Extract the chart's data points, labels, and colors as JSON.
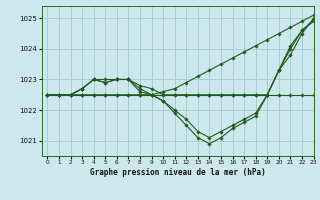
{
  "title": "Graphe pression niveau de la mer (hPa)",
  "background_color": "#cde8ec",
  "grid_color": "#a8cdd4",
  "line_color": "#1e5c1e",
  "xlim": [
    -0.5,
    23
  ],
  "ylim": [
    1020.5,
    1025.4
  ],
  "yticks": [
    1021,
    1022,
    1023,
    1024,
    1025
  ],
  "xticks": [
    0,
    1,
    2,
    3,
    4,
    5,
    6,
    7,
    8,
    9,
    10,
    11,
    12,
    13,
    14,
    15,
    16,
    17,
    18,
    19,
    20,
    21,
    22,
    23
  ],
  "series": [
    {
      "x": [
        0,
        1,
        2,
        3,
        4,
        5,
        6,
        7,
        8,
        9,
        10,
        11,
        12,
        13,
        14,
        15,
        16,
        17,
        18,
        19,
        20,
        21,
        22,
        23
      ],
      "y": [
        1022.5,
        1022.5,
        1022.5,
        1022.5,
        1022.5,
        1022.5,
        1022.5,
        1022.5,
        1022.5,
        1022.5,
        1022.5,
        1022.5,
        1022.5,
        1022.5,
        1022.5,
        1022.5,
        1022.5,
        1022.5,
        1022.5,
        1022.5,
        1022.5,
        1022.5,
        1022.5,
        1022.5
      ]
    },
    {
      "x": [
        0,
        1,
        2,
        3,
        4,
        5,
        6,
        7,
        8,
        9,
        10,
        11,
        12,
        13,
        14,
        15,
        16,
        17,
        18,
        19,
        20,
        21,
        22,
        23
      ],
      "y": [
        1022.5,
        1022.5,
        1022.5,
        1022.5,
        1022.5,
        1022.5,
        1022.5,
        1022.5,
        1022.5,
        1022.5,
        1022.6,
        1022.7,
        1022.9,
        1023.1,
        1023.3,
        1023.5,
        1023.7,
        1023.9,
        1024.1,
        1024.3,
        1024.5,
        1024.7,
        1024.9,
        1025.1
      ]
    },
    {
      "x": [
        0,
        1,
        2,
        3,
        4,
        5,
        6,
        7,
        8,
        9,
        10,
        11,
        12,
        13,
        14,
        15,
        16,
        17,
        18,
        19,
        20,
        21,
        22,
        23
      ],
      "y": [
        1022.5,
        1022.5,
        1022.5,
        1022.7,
        1023.0,
        1022.9,
        1023.0,
        1023.0,
        1022.6,
        1022.5,
        1022.3,
        1021.9,
        1021.5,
        1021.1,
        1020.9,
        1021.1,
        1021.4,
        1021.6,
        1021.8,
        1022.5,
        1023.3,
        1024.1,
        1024.6,
        1024.9
      ]
    },
    {
      "x": [
        0,
        1,
        2,
        3,
        4,
        5,
        6,
        7,
        8,
        9,
        10,
        11,
        12,
        13,
        14,
        15,
        16,
        17,
        18,
        19,
        20,
        21,
        22,
        23
      ],
      "y": [
        1022.5,
        1022.5,
        1022.5,
        1022.7,
        1023.0,
        1022.9,
        1023.0,
        1023.0,
        1022.7,
        1022.5,
        1022.3,
        1022.0,
        1021.7,
        1021.3,
        1021.1,
        1021.3,
        1021.5,
        1021.7,
        1021.9,
        1022.5,
        1023.3,
        1024.0,
        1024.6,
        1024.95
      ]
    },
    {
      "x": [
        0,
        1,
        2,
        3,
        4,
        5,
        6,
        7,
        8,
        9,
        10,
        11,
        12,
        13,
        14,
        15,
        16,
        17,
        18,
        19,
        20,
        21,
        22,
        23
      ],
      "y": [
        1022.5,
        1022.5,
        1022.5,
        1022.7,
        1023.0,
        1023.0,
        1023.0,
        1023.0,
        1022.8,
        1022.7,
        1022.5,
        1022.5,
        1022.5,
        1022.5,
        1022.5,
        1022.5,
        1022.5,
        1022.5,
        1022.5,
        1022.5,
        1023.3,
        1023.8,
        1024.5,
        1025.0
      ]
    }
  ]
}
